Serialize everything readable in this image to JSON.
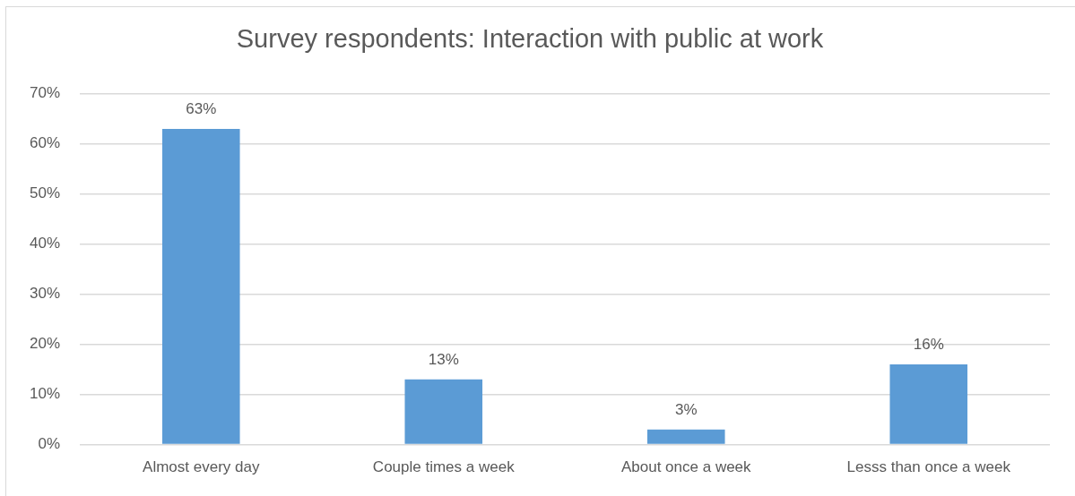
{
  "chart_data": {
    "type": "bar",
    "title": "Survey respondents: Interaction with public at work",
    "categories": [
      "Almost every day",
      "Couple times a week",
      "About once a week",
      "Lesss than once a week"
    ],
    "values": [
      63,
      13,
      3,
      16
    ],
    "color": "#5b9bd5",
    "value_labels": [
      "63%",
      "13%",
      "3%",
      "16%"
    ],
    "ylim": [
      0,
      70
    ],
    "yticks": [
      {
        "value": 0,
        "label": "0%"
      },
      {
        "value": 10,
        "label": "10%"
      },
      {
        "value": 20,
        "label": "20%"
      },
      {
        "value": 30,
        "label": "30%"
      },
      {
        "value": 40,
        "label": "40%"
      },
      {
        "value": 50,
        "label": "50%"
      },
      {
        "value": 60,
        "label": "60%"
      },
      {
        "value": 70,
        "label": "70%"
      }
    ],
    "grid": "y"
  }
}
